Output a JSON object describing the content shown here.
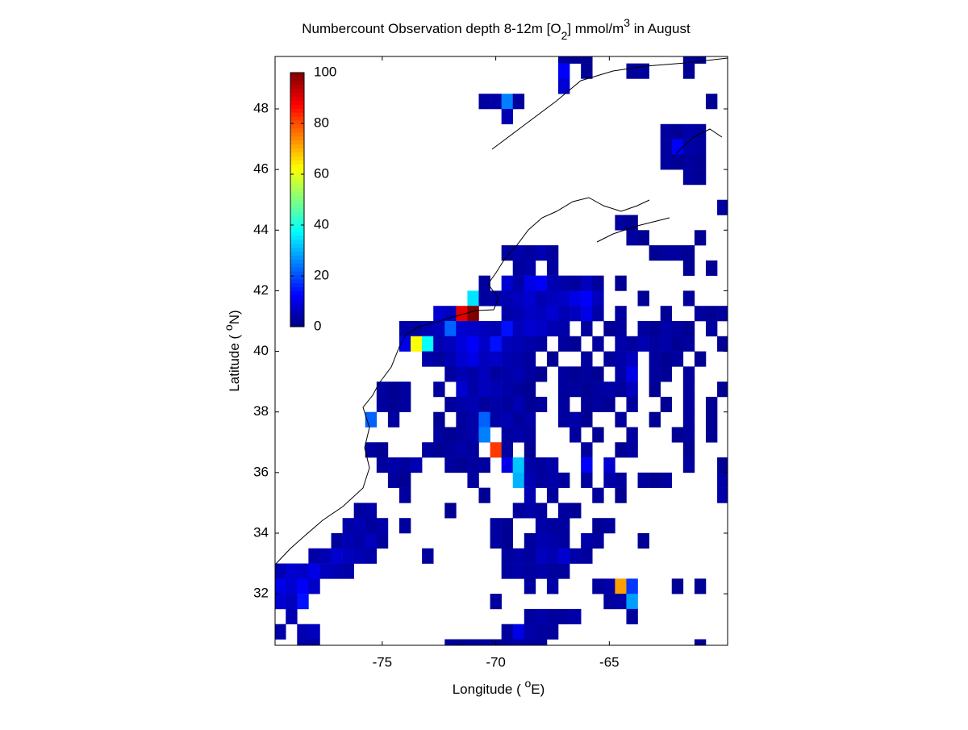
{
  "chart_data": {
    "type": "heatmap",
    "title": [
      "Numbercount Observation depth 8-12m [O",
      "2",
      "] mmol/m",
      "3",
      " in August"
    ],
    "xlabel": [
      "Longitude ( ",
      "o",
      "E)"
    ],
    "ylabel": [
      "Latitude ( ",
      "o",
      "N)"
    ],
    "xlim": [
      -79.72,
      -59.79
    ],
    "ylim": [
      30.3,
      49.73
    ],
    "xticks": [
      -75,
      -70,
      -65
    ],
    "yticks": [
      32,
      34,
      36,
      38,
      40,
      42,
      44,
      46,
      48
    ],
    "clim": [
      0,
      100
    ],
    "cticks": [
      0,
      20,
      40,
      60,
      80,
      100
    ],
    "colormap": "jet",
    "cell_size": 0.5,
    "rows": [
      {
        "lat": 49.75,
        "lon": [
          -67,
          -66.5,
          -66,
          -61.5,
          -61
        ],
        "values": [
          3,
          2,
          2,
          3,
          2
        ]
      },
      {
        "lat": 49.25,
        "lon": [
          -67,
          -66,
          -64,
          -63.5,
          -61.5
        ],
        "values": [
          12,
          2,
          3,
          3,
          2
        ]
      },
      {
        "lat": 48.75,
        "lon": [
          -67
        ],
        "values": [
          8
        ]
      },
      {
        "lat": 48.25,
        "lon": [
          -70.5,
          -70,
          -69.5,
          -69,
          -60.5
        ],
        "values": [
          3,
          4,
          25,
          3,
          2
        ]
      },
      {
        "lat": 47.75,
        "lon": [
          -69.5
        ],
        "values": [
          5
        ]
      },
      {
        "lat": 47.25,
        "lon": [
          -62.5,
          -62,
          -61.5,
          -61
        ],
        "values": [
          3,
          2,
          4,
          3
        ]
      },
      {
        "lat": 46.75,
        "lon": [
          -62.5,
          -62,
          -61.5,
          -61
        ],
        "values": [
          3,
          12,
          4,
          3
        ]
      },
      {
        "lat": 46.25,
        "lon": [
          -62.5,
          -62,
          -61.5,
          -61
        ],
        "values": [
          3,
          2,
          3,
          2
        ]
      },
      {
        "lat": 45.75,
        "lon": [
          -61.5,
          -61
        ],
        "values": [
          3,
          2
        ]
      },
      {
        "lat": 44.75,
        "lon": [
          -60
        ],
        "values": [
          3
        ]
      },
      {
        "lat": 44.25,
        "lon": [
          -64.5,
          -64
        ],
        "values": [
          3,
          2
        ]
      },
      {
        "lat": 43.75,
        "lon": [
          -64,
          -63.5,
          -61
        ],
        "values": [
          3,
          2,
          2
        ]
      },
      {
        "lat": 43.25,
        "lon": [
          -69.5,
          -69,
          -68.5,
          -68,
          -67.5,
          -63,
          -62.5,
          -62,
          -61.5
        ],
        "values": [
          3,
          4,
          3,
          5,
          3,
          2,
          3,
          3,
          2
        ]
      },
      {
        "lat": 42.75,
        "lon": [
          -69,
          -68.5,
          -67.5,
          -61.5,
          -60.5
        ],
        "values": [
          3,
          4,
          3,
          2,
          2
        ]
      },
      {
        "lat": 42.25,
        "lon": [
          -70.5,
          -69.5,
          -69,
          -68.5,
          -68,
          -67.5,
          -67,
          -66.5,
          -66,
          -65.5,
          -64.5
        ],
        "values": [
          3,
          8,
          4,
          10,
          12,
          5,
          4,
          3,
          6,
          3,
          2
        ]
      },
      {
        "lat": 41.75,
        "lon": [
          -71,
          -70.5,
          -70,
          -69.5,
          -69,
          -68.5,
          -68,
          -67.5,
          -67,
          -66.5,
          -66,
          -65.5,
          -63.5,
          -61.5
        ],
        "values": [
          35,
          3,
          4,
          5,
          6,
          8,
          5,
          6,
          7,
          10,
          12,
          6,
          2,
          3
        ]
      },
      {
        "lat": 41.25,
        "lon": [
          -72.5,
          -72,
          -71.5,
          -71,
          -69.5,
          -69,
          -68.5,
          -68,
          -67.5,
          -67,
          -66.5,
          -66,
          -65.5,
          -64.5,
          -62.5,
          -61,
          -60.5,
          -60
        ],
        "values": [
          8,
          6,
          90,
          100,
          4,
          5,
          7,
          6,
          8,
          5,
          6,
          10,
          4,
          3,
          2,
          3,
          2,
          3
        ]
      },
      {
        "lat": 40.75,
        "lon": [
          -74,
          -73.5,
          -73,
          -72.5,
          -72,
          -71.5,
          -71,
          -70.5,
          -70,
          -69.5,
          -69,
          -68.5,
          -68,
          -67.5,
          -67,
          -66,
          -65,
          -64.5,
          -63.5,
          -63,
          -62.5,
          -62,
          -61.5,
          -60.5
        ],
        "values": [
          4,
          3,
          5,
          6,
          22,
          8,
          7,
          6,
          5,
          14,
          6,
          8,
          7,
          5,
          4,
          3,
          2,
          3,
          3,
          2,
          4,
          3,
          2,
          3
        ]
      },
      {
        "lat": 40.25,
        "lon": [
          -74,
          -73.5,
          -73,
          -72.5,
          -72,
          -71.5,
          -71,
          -70.5,
          -70,
          -69.5,
          -69,
          -68.5,
          -68,
          -67,
          -66.5,
          -65.5,
          -64.5,
          -64,
          -63.5,
          -63,
          -62.5,
          -62,
          -61.5,
          -60
        ],
        "values": [
          10,
          62,
          38,
          5,
          6,
          9,
          12,
          7,
          14,
          6,
          5,
          4,
          3,
          3,
          2,
          3,
          4,
          3,
          5,
          3,
          4,
          2,
          3,
          2
        ]
      },
      {
        "lat": 39.75,
        "lon": [
          -73,
          -72.5,
          -72,
          -71.5,
          -71,
          -70.5,
          -70,
          -69.5,
          -69,
          -68.5,
          -67.5,
          -66,
          -65,
          -64.5,
          -64,
          -63,
          -62.5,
          -62,
          -61
        ],
        "values": [
          4,
          3,
          5,
          8,
          10,
          6,
          7,
          5,
          4,
          3,
          2,
          3,
          3,
          4,
          6,
          3,
          2,
          3,
          2
        ]
      },
      {
        "lat": 39.25,
        "lon": [
          -72,
          -71.5,
          -71,
          -70.5,
          -70,
          -69.5,
          -69,
          -68.5,
          -68,
          -67,
          -66.5,
          -66,
          -65.5,
          -64.5,
          -64,
          -63,
          -62.5,
          -61.5
        ],
        "values": [
          3,
          5,
          4,
          6,
          3,
          4,
          5,
          3,
          2,
          3,
          2,
          3,
          2,
          4,
          10,
          3,
          2,
          3
        ]
      },
      {
        "lat": 38.75,
        "lon": [
          -75,
          -74.5,
          -74,
          -72.5,
          -71.5,
          -71,
          -70.5,
          -70,
          -69.5,
          -69,
          -68.5,
          -67,
          -66.5,
          -66,
          -65.5,
          -65,
          -64.5,
          -64,
          -63,
          -61.5,
          -60
        ],
        "values": [
          3,
          2,
          3,
          3,
          8,
          4,
          6,
          5,
          4,
          3,
          2,
          3,
          3,
          2,
          3,
          4,
          3,
          6,
          2,
          3,
          2
        ]
      },
      {
        "lat": 38.25,
        "lon": [
          -75,
          -74.5,
          -74,
          -72,
          -71.5,
          -71,
          -70.5,
          -70,
          -69.5,
          -69,
          -68.5,
          -68,
          -67,
          -66,
          -65.5,
          -65,
          -64,
          -62.5,
          -61.5,
          -60.5
        ],
        "values": [
          3,
          2,
          3,
          3,
          4,
          5,
          3,
          4,
          3,
          5,
          2,
          3,
          3,
          2,
          3,
          2,
          3,
          2,
          3,
          2
        ]
      },
      {
        "lat": 37.75,
        "lon": [
          -75.5,
          -74.5,
          -72.5,
          -71.5,
          -71,
          -70.5,
          -70,
          -69.5,
          -69,
          -68.5,
          -67,
          -66.5,
          -66,
          -64.5,
          -63,
          -61.5,
          -60.5
        ],
        "values": [
          22,
          3,
          2,
          3,
          4,
          22,
          4,
          5,
          3,
          4,
          3,
          4,
          2,
          3,
          2,
          3,
          2
        ]
      },
      {
        "lat": 37.25,
        "lon": [
          -72.5,
          -72,
          -71.5,
          -71,
          -70.5,
          -69.5,
          -69,
          -68.5,
          -66.5,
          -65.5,
          -64,
          -62,
          -61.5,
          -60.5
        ],
        "values": [
          3,
          2,
          3,
          4,
          25,
          3,
          4,
          3,
          3,
          2,
          3,
          2,
          3,
          2
        ]
      },
      {
        "lat": 36.75,
        "lon": [
          -75.5,
          -75,
          -73,
          -72.5,
          -72,
          -71.5,
          -71,
          -70,
          -69.5,
          -68.5,
          -66,
          -64.5,
          -64,
          -61.5
        ],
        "values": [
          3,
          2,
          3,
          2,
          3,
          4,
          3,
          82,
          3,
          2,
          3,
          2,
          3,
          2
        ]
      },
      {
        "lat": 36.25,
        "lon": [
          -75,
          -74.5,
          -74,
          -73.5,
          -72,
          -71.5,
          -71,
          -70.5,
          -69.5,
          -69,
          -68.5,
          -68,
          -67.5,
          -66,
          -65,
          -61.5,
          -60
        ],
        "values": [
          3,
          4,
          3,
          5,
          3,
          2,
          3,
          3,
          10,
          32,
          4,
          3,
          4,
          12,
          8,
          3,
          2
        ]
      },
      {
        "lat": 35.75,
        "lon": [
          -74.5,
          -74,
          -71,
          -69,
          -68.5,
          -68,
          -67.5,
          -67,
          -66,
          -65,
          -64.5,
          -63.5,
          -63,
          -62.5,
          -60
        ],
        "values": [
          3,
          2,
          3,
          30,
          5,
          3,
          4,
          3,
          3,
          4,
          3,
          3,
          2,
          3,
          4
        ]
      },
      {
        "lat": 35.25,
        "lon": [
          -74,
          -70.5,
          -68.5,
          -67.5,
          -65.5,
          -64.5,
          -60
        ],
        "values": [
          3,
          2,
          5,
          3,
          3,
          2,
          4
        ]
      },
      {
        "lat": 34.75,
        "lon": [
          -76,
          -75.5,
          -72,
          -69,
          -68.5,
          -68,
          -67,
          -66.5
        ],
        "values": [
          3,
          4,
          2,
          3,
          4,
          3,
          3,
          2
        ]
      },
      {
        "lat": 34.25,
        "lon": [
          -76.5,
          -76,
          -75.5,
          -75,
          -74,
          -70,
          -69.5,
          -68,
          -67.5,
          -67,
          -65.5,
          -65
        ],
        "values": [
          4,
          5,
          3,
          4,
          3,
          3,
          2,
          4,
          3,
          3,
          2,
          3
        ]
      },
      {
        "lat": 33.75,
        "lon": [
          -77,
          -76.5,
          -76,
          -75.5,
          -75,
          -70,
          -69.5,
          -68.5,
          -68,
          -67.5,
          -67,
          -66,
          -65.5,
          -63.5
        ],
        "values": [
          3,
          5,
          4,
          6,
          3,
          3,
          2,
          3,
          5,
          4,
          3,
          4,
          3,
          2
        ]
      },
      {
        "lat": 33.25,
        "lon": [
          -78,
          -77.5,
          -77,
          -76.5,
          -76,
          -75.5,
          -73,
          -69.5,
          -69,
          -68.5,
          -68,
          -67.5,
          -67,
          -66.5,
          -66
        ],
        "values": [
          4,
          5,
          8,
          6,
          5,
          4,
          3,
          3,
          4,
          3,
          6,
          5,
          8,
          4,
          3
        ]
      },
      {
        "lat": 32.75,
        "lon": [
          -79.5,
          -79,
          -78.5,
          -78,
          -77.5,
          -77,
          -76.5,
          -69.5,
          -69,
          -68.5,
          -68,
          -67.5,
          -67
        ],
        "values": [
          5,
          8,
          7,
          10,
          6,
          5,
          4,
          3,
          4,
          3,
          4,
          3,
          3
        ]
      },
      {
        "lat": 32.25,
        "lon": [
          -79.5,
          -79,
          -78.5,
          -78,
          -68.5,
          -67.5,
          -65.5,
          -65,
          -64.5,
          -64,
          -62,
          -61
        ],
        "values": [
          10,
          8,
          12,
          7,
          3,
          4,
          3,
          4,
          72,
          18,
          2,
          2
        ]
      },
      {
        "lat": 31.75,
        "lon": [
          -79.5,
          -79,
          -78.5,
          -70,
          -65,
          -64.5,
          -64
        ],
        "values": [
          8,
          6,
          14,
          3,
          3,
          4,
          28
        ]
      },
      {
        "lat": 31.25,
        "lon": [
          -79,
          -68.5,
          -68,
          -67.5,
          -67,
          -66.5,
          -64
        ],
        "values": [
          5,
          3,
          4,
          3,
          3,
          4,
          3
        ]
      },
      {
        "lat": 30.75,
        "lon": [
          -79.5,
          -78.5,
          -78,
          -69.5,
          -69,
          -68.5,
          -68,
          -67.5
        ],
        "values": [
          4,
          5,
          6,
          3,
          10,
          4,
          3,
          3
        ]
      },
      {
        "lat": 30.25,
        "lon": [
          -78.5,
          -78,
          -72,
          -71.5,
          -71,
          -70.5,
          -70,
          -69.5,
          -69,
          -68.5,
          -68,
          -61
        ],
        "values": [
          4,
          3,
          3,
          2,
          3,
          3,
          2,
          3,
          4,
          3,
          3,
          2
        ]
      }
    ]
  }
}
